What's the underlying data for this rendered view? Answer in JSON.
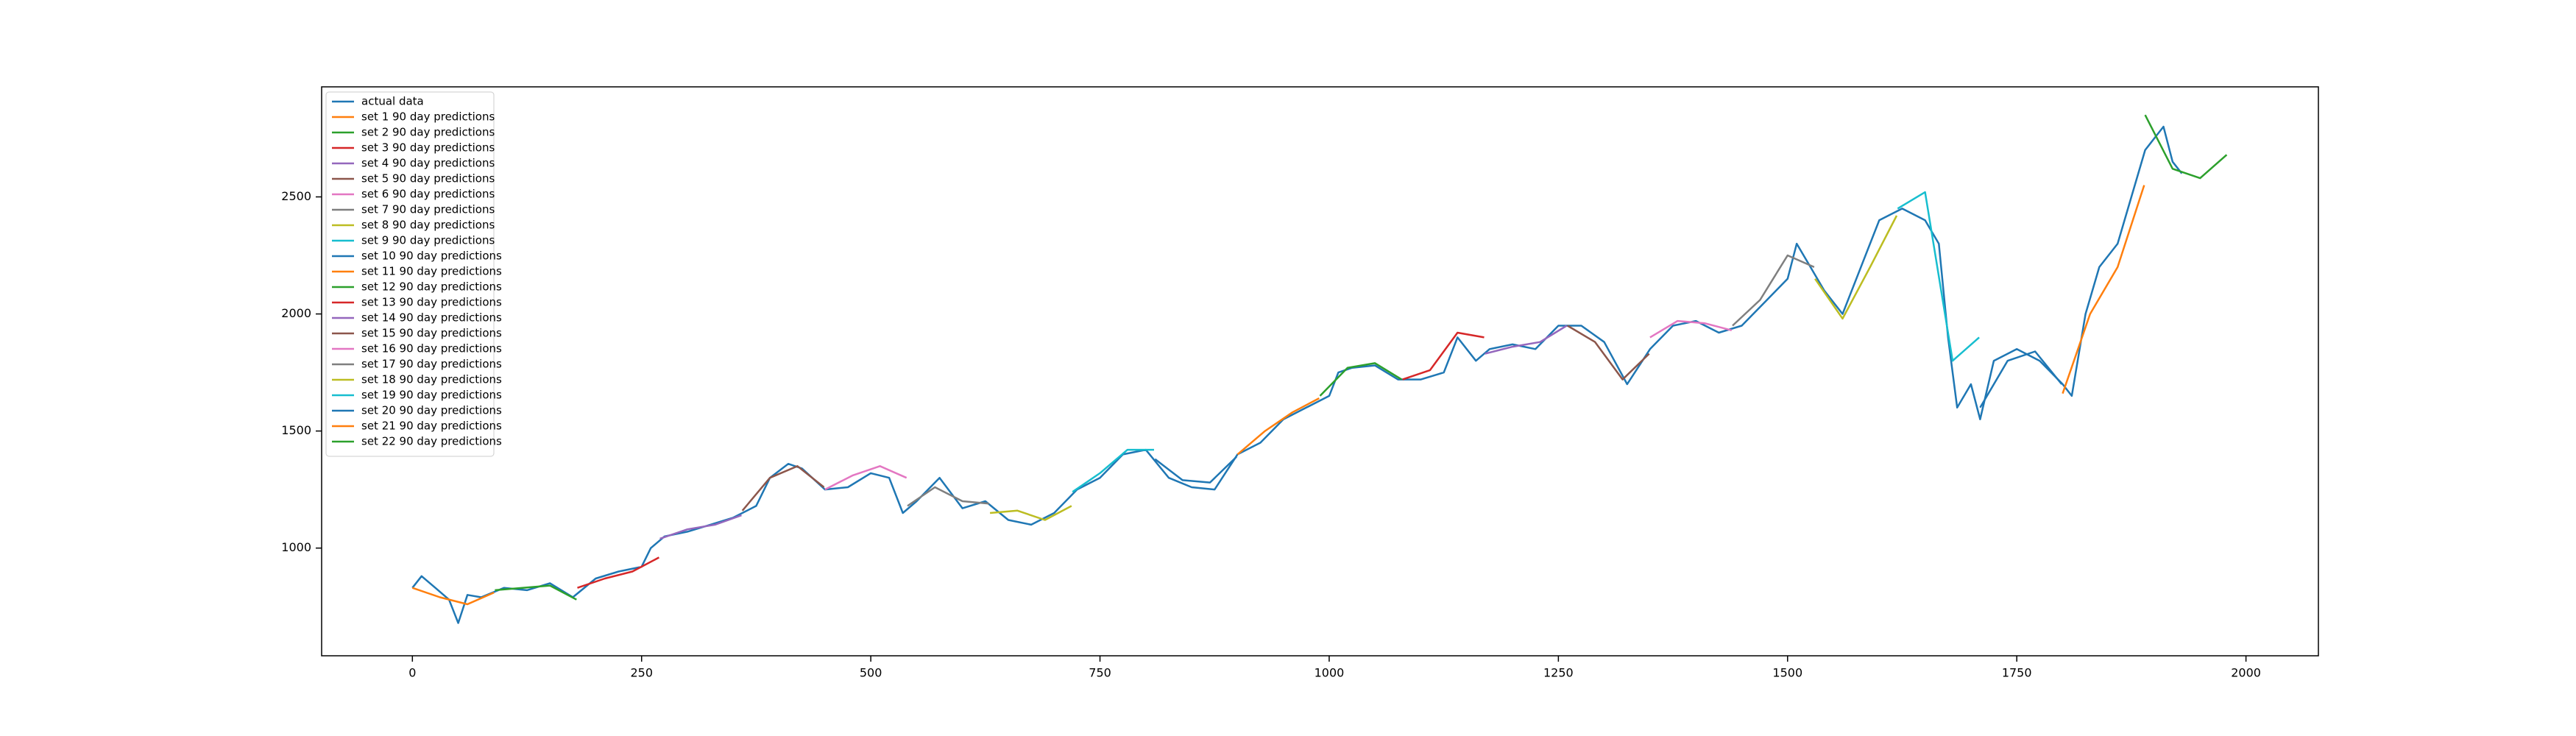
{
  "chart_data": {
    "type": "line",
    "xlim": [
      -99,
      2079
    ],
    "ylim": [
      540,
      2970
    ],
    "xticks": [
      0,
      250,
      500,
      750,
      1000,
      1250,
      1500,
      1750,
      2000
    ],
    "yticks": [
      1000,
      1500,
      2000,
      2500
    ],
    "legend": "upper left",
    "series": [
      {
        "name": "actual data",
        "color": "#1f77b4",
        "x": [
          0,
          10,
          25,
          40,
          50,
          60,
          75,
          100,
          125,
          150,
          175,
          200,
          225,
          250,
          260,
          275,
          300,
          325,
          350,
          375,
          390,
          410,
          425,
          450,
          475,
          500,
          520,
          535,
          550,
          575,
          600,
          625,
          650,
          675,
          700,
          725,
          750,
          775,
          800,
          825,
          850,
          875,
          900,
          925,
          950,
          975,
          1000,
          1010,
          1025,
          1050,
          1075,
          1100,
          1125,
          1140,
          1160,
          1175,
          1200,
          1225,
          1250,
          1275,
          1300,
          1325,
          1350,
          1375,
          1400,
          1425,
          1450,
          1475,
          1500,
          1510,
          1525,
          1540,
          1560,
          1575,
          1600,
          1625,
          1650,
          1665,
          1675,
          1685,
          1700,
          1710,
          1725,
          1750,
          1775,
          1800,
          1810,
          1825,
          1840,
          1860,
          1875,
          1890,
          1900,
          1910,
          1920,
          1930
        ],
        "values": [
          830,
          880,
          830,
          780,
          680,
          800,
          790,
          830,
          820,
          850,
          790,
          870,
          900,
          920,
          1000,
          1050,
          1070,
          1100,
          1130,
          1180,
          1300,
          1360,
          1340,
          1250,
          1260,
          1320,
          1300,
          1150,
          1200,
          1300,
          1170,
          1200,
          1120,
          1100,
          1150,
          1250,
          1300,
          1400,
          1420,
          1300,
          1260,
          1250,
          1400,
          1450,
          1550,
          1600,
          1650,
          1750,
          1770,
          1780,
          1720,
          1720,
          1750,
          1900,
          1800,
          1850,
          1870,
          1850,
          1950,
          1950,
          1880,
          1700,
          1850,
          1950,
          1970,
          1920,
          1950,
          2050,
          2150,
          2300,
          2200,
          2100,
          2000,
          2150,
          2400,
          2450,
          2400,
          2300,
          1900,
          1600,
          1700,
          1550,
          1800,
          1850,
          1800,
          1700,
          1650,
          2000,
          2200,
          2300,
          2500,
          2700,
          2750,
          2800,
          2650,
          2600
        ]
      },
      {
        "name": "set 1 90 day predictions",
        "color": "#ff7f0e",
        "x": [
          0,
          30,
          60,
          89
        ],
        "values": [
          830,
          790,
          760,
          810
        ]
      },
      {
        "name": "set 2 90 day predictions",
        "color": "#2ca02c",
        "x": [
          90,
          120,
          150,
          179
        ],
        "values": [
          820,
          830,
          840,
          780
        ]
      },
      {
        "name": "set 3 90 day predictions",
        "color": "#d62728",
        "x": [
          180,
          210,
          240,
          269
        ],
        "values": [
          830,
          870,
          900,
          960
        ]
      },
      {
        "name": "set 4 90 day predictions",
        "color": "#9467bd",
        "x": [
          270,
          300,
          330,
          359
        ],
        "values": [
          1040,
          1080,
          1100,
          1140
        ]
      },
      {
        "name": "set 5 90 day predictions",
        "color": "#8c564b",
        "x": [
          360,
          390,
          420,
          449
        ],
        "values": [
          1160,
          1300,
          1350,
          1260
        ]
      },
      {
        "name": "set 6 90 day predictions",
        "color": "#e377c2",
        "x": [
          450,
          480,
          510,
          539
        ],
        "values": [
          1250,
          1310,
          1350,
          1300
        ]
      },
      {
        "name": "set 7 90 day predictions",
        "color": "#7f7f7f",
        "x": [
          540,
          570,
          600,
          629
        ],
        "values": [
          1180,
          1260,
          1200,
          1190
        ]
      },
      {
        "name": "set 8 90 day predictions",
        "color": "#bcbd22",
        "x": [
          630,
          660,
          690,
          719
        ],
        "values": [
          1150,
          1160,
          1120,
          1180
        ]
      },
      {
        "name": "set 9 90 day predictions",
        "color": "#17becf",
        "x": [
          720,
          750,
          780,
          809
        ],
        "values": [
          1240,
          1320,
          1420,
          1420
        ]
      },
      {
        "name": "set 10 90 day predictions",
        "color": "#1f77b4",
        "x": [
          810,
          840,
          870,
          899
        ],
        "values": [
          1380,
          1290,
          1280,
          1390
        ]
      },
      {
        "name": "set 11 90 day predictions",
        "color": "#ff7f0e",
        "x": [
          900,
          930,
          960,
          989
        ],
        "values": [
          1400,
          1500,
          1580,
          1640
        ]
      },
      {
        "name": "set 12 90 day predictions",
        "color": "#2ca02c",
        "x": [
          990,
          1020,
          1050,
          1079
        ],
        "values": [
          1650,
          1770,
          1790,
          1720
        ]
      },
      {
        "name": "set 13 90 day predictions",
        "color": "#d62728",
        "x": [
          1080,
          1110,
          1140,
          1169
        ],
        "values": [
          1720,
          1760,
          1920,
          1900
        ]
      },
      {
        "name": "set 14 90 day predictions",
        "color": "#9467bd",
        "x": [
          1170,
          1200,
          1230,
          1259
        ],
        "values": [
          1830,
          1860,
          1880,
          1950
        ]
      },
      {
        "name": "set 15 90 day predictions",
        "color": "#8c564b",
        "x": [
          1260,
          1290,
          1320,
          1349
        ],
        "values": [
          1950,
          1880,
          1720,
          1830
        ]
      },
      {
        "name": "set 16 90 day predictions",
        "color": "#e377c2",
        "x": [
          1350,
          1380,
          1410,
          1439
        ],
        "values": [
          1900,
          1970,
          1960,
          1930
        ]
      },
      {
        "name": "set 17 90 day predictions",
        "color": "#7f7f7f",
        "x": [
          1440,
          1470,
          1500,
          1529
        ],
        "values": [
          1950,
          2060,
          2250,
          2200
        ]
      },
      {
        "name": "set 18 90 day predictions",
        "color": "#bcbd22",
        "x": [
          1530,
          1560,
          1590,
          1619
        ],
        "values": [
          2150,
          1980,
          2200,
          2420
        ]
      },
      {
        "name": "set 19 90 day predictions",
        "color": "#17becf",
        "x": [
          1620,
          1650,
          1680,
          1709
        ],
        "values": [
          2450,
          2520,
          1800,
          1900
        ]
      },
      {
        "name": "set 20 90 day predictions",
        "color": "#1f77b4",
        "x": [
          1710,
          1740,
          1770,
          1799
        ],
        "values": [
          1600,
          1800,
          1840,
          1700
        ]
      },
      {
        "name": "set 21 90 day predictions",
        "color": "#ff7f0e",
        "x": [
          1800,
          1830,
          1860,
          1889
        ],
        "values": [
          1660,
          2000,
          2200,
          2550
        ]
      },
      {
        "name": "set 22 90 day predictions",
        "color": "#2ca02c",
        "x": [
          1890,
          1920,
          1950,
          1979
        ],
        "values": [
          2850,
          2620,
          2580,
          2680
        ]
      }
    ]
  }
}
